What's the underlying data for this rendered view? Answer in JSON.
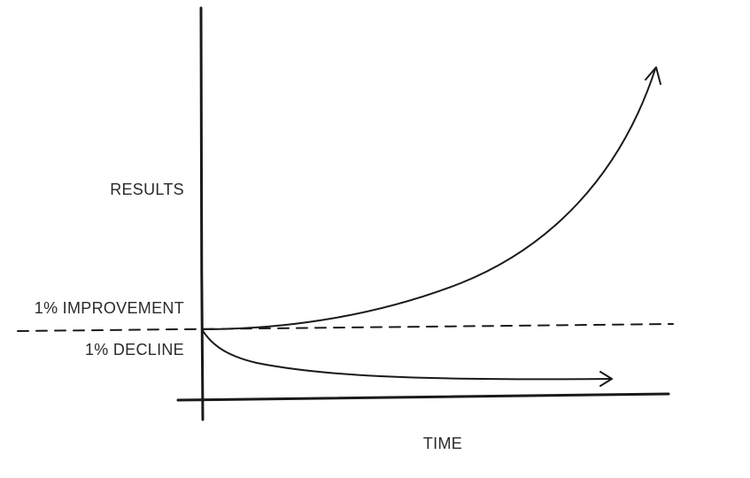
{
  "labels": {
    "y_axis": "RESULTS",
    "improvement": "1% IMPROVEMENT",
    "decline": "1% DECLINE",
    "x_axis": "TIME"
  }
}
